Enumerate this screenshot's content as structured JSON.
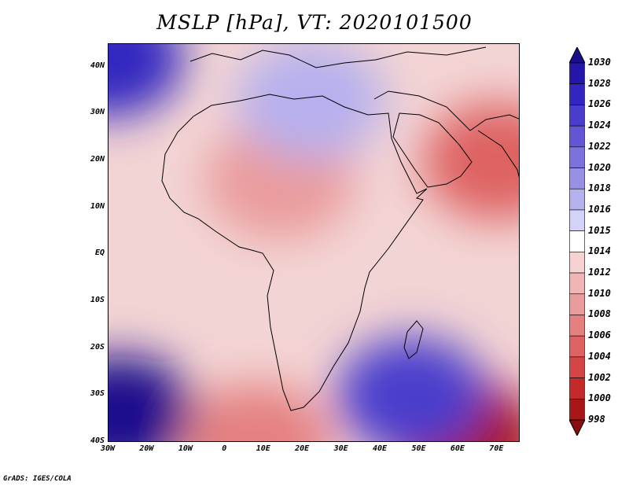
{
  "title": "MSLP [hPa], VT: 2020101500",
  "credit": "GrADS: IGES/COLA",
  "map": {
    "lon_range": [
      -30,
      76
    ],
    "lat_range": [
      -40,
      45
    ],
    "lat_ticks": [
      {
        "value": 40,
        "label": "40N"
      },
      {
        "value": 30,
        "label": "30N"
      },
      {
        "value": 20,
        "label": "20N"
      },
      {
        "value": 10,
        "label": "10N"
      },
      {
        "value": 0,
        "label": "EQ"
      },
      {
        "value": -10,
        "label": "10S"
      },
      {
        "value": -20,
        "label": "20S"
      },
      {
        "value": -30,
        "label": "30S"
      },
      {
        "value": -40,
        "label": "40S"
      }
    ],
    "lon_ticks": [
      {
        "value": -30,
        "label": "30W"
      },
      {
        "value": -20,
        "label": "20W"
      },
      {
        "value": -10,
        "label": "10W"
      },
      {
        "value": 0,
        "label": "0"
      },
      {
        "value": 10,
        "label": "10E"
      },
      {
        "value": 20,
        "label": "20E"
      },
      {
        "value": 30,
        "label": "30E"
      },
      {
        "value": 40,
        "label": "40E"
      },
      {
        "value": 50,
        "label": "50E"
      },
      {
        "value": 60,
        "label": "60E"
      },
      {
        "value": 70,
        "label": "70E"
      }
    ],
    "pressure_features": [
      {
        "name": "sahara-low",
        "lon": 14,
        "lat": 16,
        "value": 1008
      },
      {
        "name": "arabian-low",
        "lon": 70,
        "lat": 20,
        "value": 1005
      },
      {
        "name": "indian-ocean-low",
        "lon": 62,
        "lat": -39,
        "value": 999
      },
      {
        "name": "south-atlantic-high",
        "lon": -27,
        "lat": -34,
        "value": 1030
      },
      {
        "name": "south-africa-low",
        "lon": 8,
        "lat": -40,
        "value": 1006
      },
      {
        "name": "north-atlantic-high",
        "lon": -30,
        "lat": 42,
        "value": 1027
      },
      {
        "name": "mediterranean-high",
        "lon": 22,
        "lat": 33,
        "value": 1016
      },
      {
        "name": "indian-ocean-high",
        "lon": 48,
        "lat": -30,
        "value": 1024
      }
    ]
  },
  "colorbar": {
    "levels": [
      "1030",
      "1028",
      "1026",
      "1024",
      "1022",
      "1020",
      "1018",
      "1016",
      "1015",
      "1014",
      "1012",
      "1010",
      "1008",
      "1006",
      "1004",
      "1002",
      "1000",
      "998"
    ],
    "colors": [
      "#1a0e8c",
      "#2416a8",
      "#3325c0",
      "#4a3ccc",
      "#6356d4",
      "#7c72dc",
      "#9890e4",
      "#b6b0ee",
      "#d4d2f6",
      "#ffffff",
      "#f6d2d2",
      "#f0b6b6",
      "#ea9b9b",
      "#e58080",
      "#de6262",
      "#d44646",
      "#c42a2a",
      "#a81717",
      "#8c0d0d"
    ]
  }
}
